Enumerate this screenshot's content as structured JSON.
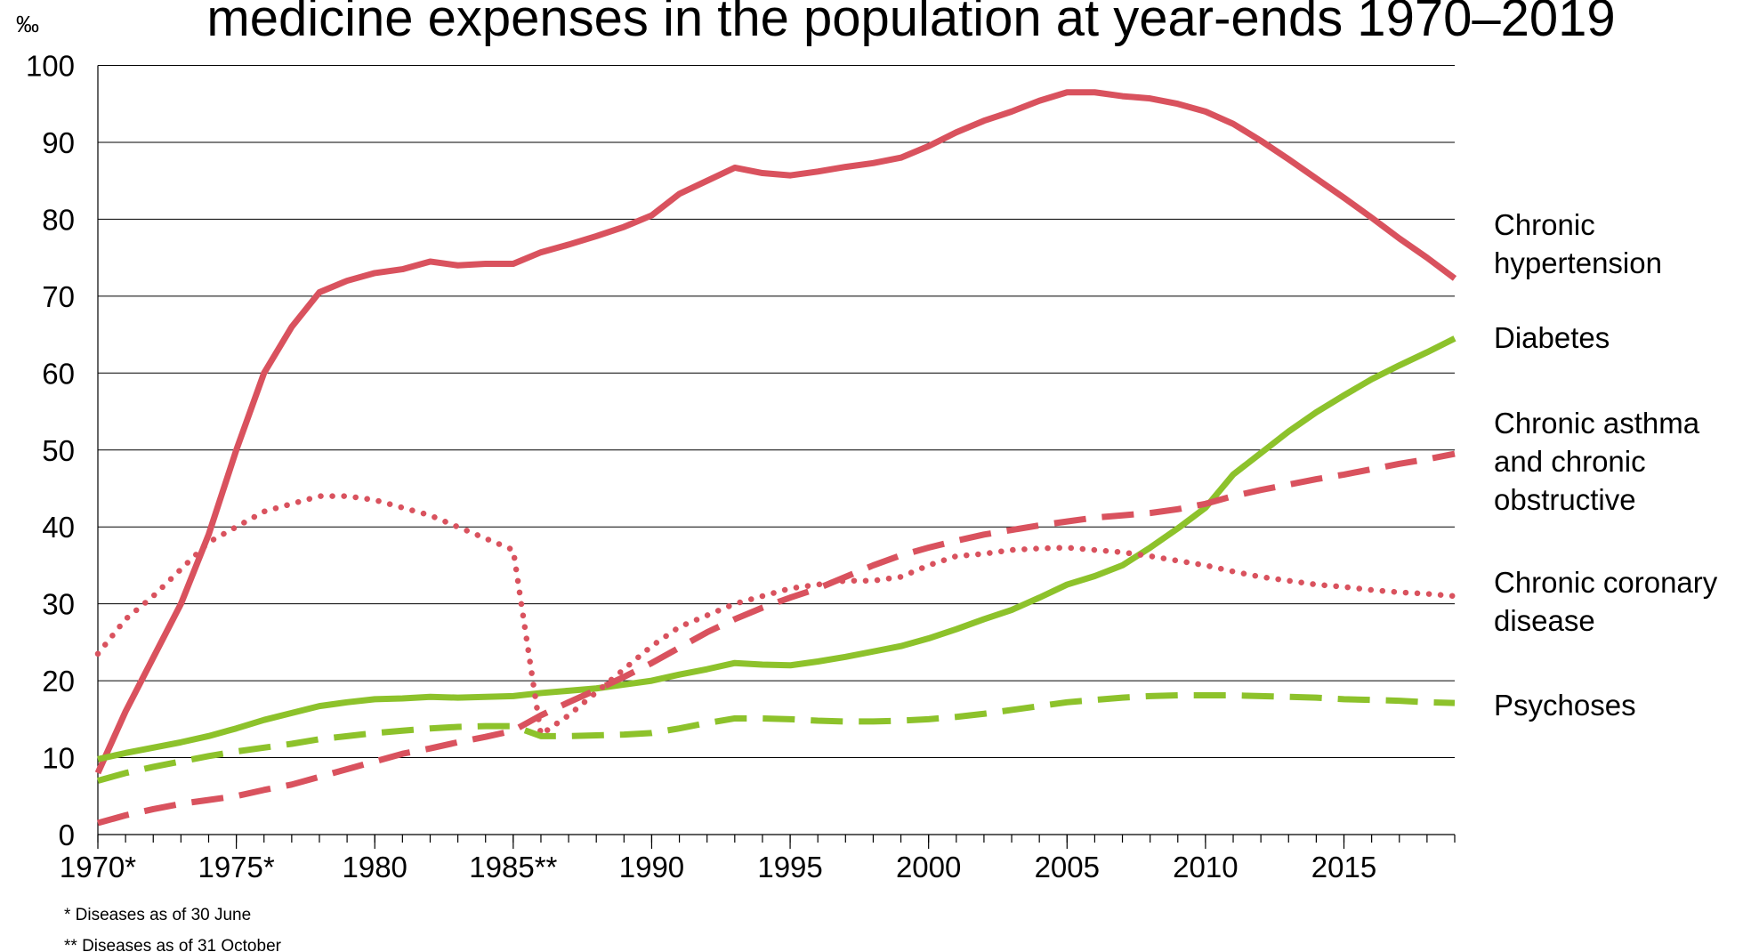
{
  "chart_data": {
    "type": "line",
    "title": "medicine expenses in the population at year-ends 1970–2019",
    "y_label": "‰",
    "footnotes": [
      "* Diseases as of 30 June",
      "** Diseases as of 31 October"
    ],
    "x": [
      1970,
      1971,
      1972,
      1973,
      1974,
      1975,
      1976,
      1977,
      1978,
      1979,
      1980,
      1981,
      1982,
      1983,
      1984,
      1985,
      1986,
      1987,
      1988,
      1989,
      1990,
      1991,
      1992,
      1993,
      1994,
      1995,
      1996,
      1997,
      1998,
      1999,
      2000,
      2001,
      2002,
      2003,
      2004,
      2005,
      2006,
      2007,
      2008,
      2009,
      2010,
      2011,
      2012,
      2013,
      2014,
      2015,
      2016,
      2017,
      2018,
      2019
    ],
    "xlim": [
      1970,
      2019
    ],
    "xticks": [
      {
        "value": 1970,
        "label": "1970*"
      },
      {
        "value": 1975,
        "label": "1975*"
      },
      1980,
      {
        "value": 1985,
        "label": "1985**"
      },
      1990,
      1995,
      2000,
      2005,
      2010,
      2015
    ],
    "ylim": [
      0,
      100
    ],
    "yticks": [
      0,
      10,
      20,
      30,
      40,
      50,
      60,
      70,
      80,
      90,
      100
    ],
    "grid": true,
    "series": [
      {
        "name": "Chronic hypertension",
        "color": "#d9525e",
        "style": "solid",
        "values": [
          8,
          16,
          23,
          30,
          39,
          50,
          60,
          66,
          70.5,
          72,
          73,
          73.5,
          74.5,
          74,
          74.2,
          74.2,
          75.7,
          76.7,
          77.8,
          79,
          80.5,
          83.3,
          85,
          86.7,
          86,
          85.7,
          86.2,
          86.8,
          87.3,
          88,
          89.5,
          91.3,
          92.8,
          94,
          95.4,
          96.5,
          96.5,
          96,
          95.7,
          95,
          94,
          92.4,
          90.2,
          87.8,
          85.3,
          82.8,
          80.2,
          77.5,
          75,
          72.3
        ]
      },
      {
        "name": "Diabetes",
        "color": "#8dc22b",
        "style": "solid",
        "values": [
          9.8,
          10.6,
          11.3,
          12,
          12.8,
          13.8,
          14.9,
          15.8,
          16.7,
          17.2,
          17.6,
          17.7,
          17.9,
          17.8,
          17.9,
          18,
          18.4,
          18.7,
          19,
          19.5,
          20,
          20.8,
          21.5,
          22.3,
          22.1,
          22,
          22.5,
          23.1,
          23.8,
          24.5,
          25.5,
          26.7,
          28,
          29.2,
          30.8,
          32.5,
          33.6,
          35,
          37.3,
          39.8,
          42.5,
          46.8,
          49.6,
          52.4,
          54.9,
          57.1,
          59.2,
          61,
          62.7,
          64.5
        ]
      },
      {
        "name": "Chronic asthma and chronic obstructive",
        "color": "#d9525e",
        "style": "dashed",
        "values": [
          1.5,
          2.5,
          3.3,
          4,
          4.5,
          5,
          5.8,
          6.5,
          7.5,
          8.5,
          9.5,
          10.5,
          11.2,
          12,
          12.7,
          13.5,
          15.5,
          17.2,
          18.8,
          20.5,
          22.3,
          24.3,
          26.3,
          28,
          29.5,
          30.8,
          32,
          33.5,
          35,
          36.3,
          37.3,
          38.2,
          39,
          39.6,
          40.2,
          40.7,
          41.2,
          41.5,
          41.8,
          42.3,
          43,
          44,
          44.8,
          45.5,
          46.2,
          46.8,
          47.5,
          48.2,
          48.8,
          49.5
        ]
      },
      {
        "name": "Chronic coronary disease",
        "color": "#d9525e",
        "style": "dotted",
        "values": [
          23.5,
          28,
          31,
          34.5,
          38,
          40,
          42,
          43,
          44,
          44,
          43.5,
          42.5,
          41.5,
          40,
          38.5,
          37,
          13,
          15.5,
          18.5,
          21.5,
          24.5,
          27,
          28.5,
          30,
          31,
          32,
          32.5,
          33,
          33,
          33.5,
          35,
          36.2,
          36.5,
          37,
          37.2,
          37.3,
          37,
          36.7,
          36.2,
          35.6,
          35,
          34.2,
          33.5,
          33,
          32.5,
          32.2,
          31.8,
          31.5,
          31.3,
          31
        ]
      },
      {
        "name": "Psychoses",
        "color": "#8dc22b",
        "style": "dashed",
        "values": [
          7,
          8,
          8.8,
          9.5,
          10.2,
          10.8,
          11.3,
          11.8,
          12.4,
          12.8,
          13.2,
          13.5,
          13.8,
          14,
          14.1,
          14.1,
          12.8,
          12.8,
          12.9,
          13,
          13.2,
          13.8,
          14.5,
          15.1,
          15.1,
          15,
          14.8,
          14.7,
          14.7,
          14.8,
          15,
          15.3,
          15.7,
          16.2,
          16.7,
          17.2,
          17.5,
          17.8,
          18,
          18.1,
          18.1,
          18.1,
          18,
          17.9,
          17.8,
          17.6,
          17.5,
          17.4,
          17.2,
          17.1
        ]
      }
    ]
  }
}
